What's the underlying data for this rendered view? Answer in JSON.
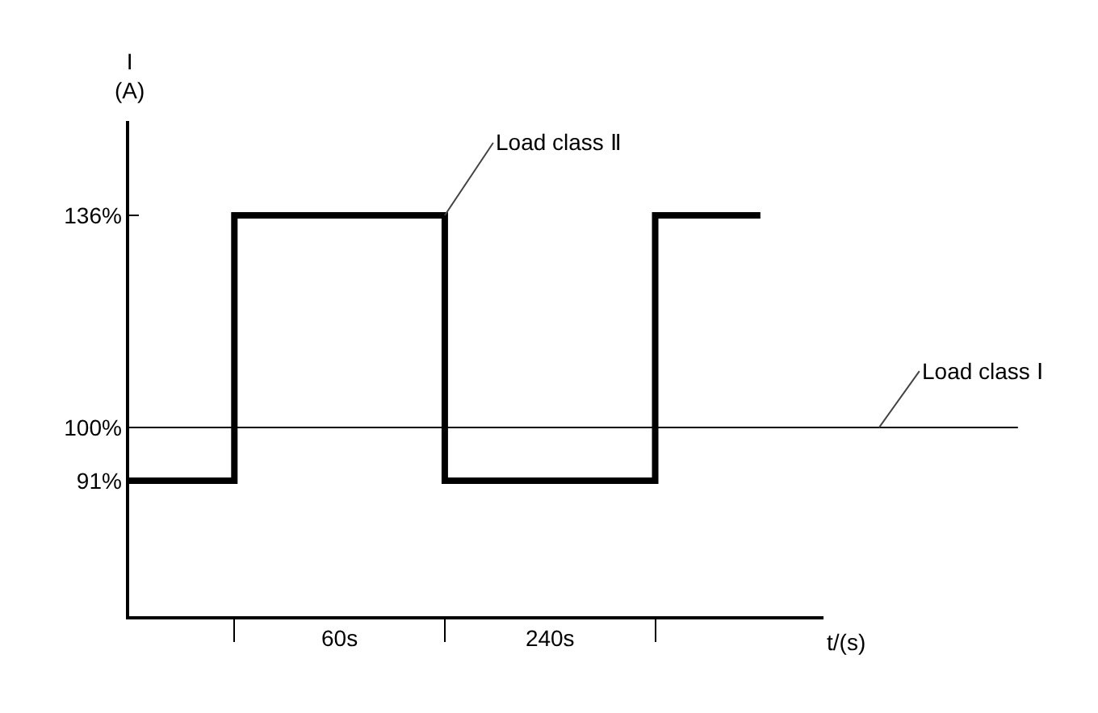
{
  "chart_data": {
    "type": "step",
    "ylabel": "I\n(A)",
    "xlabel": "t/(s)",
    "categories": [
      null,
      "60s",
      "240s",
      null
    ],
    "series": [
      {
        "name": "Load class Ⅱ",
        "color": "#000000",
        "values": [
          91,
          136,
          91,
          136
        ]
      }
    ],
    "ylim": [
      68,
      152
    ],
    "yticks": [
      {
        "value": 91,
        "label": "91%"
      },
      {
        "value": 100,
        "label": "100%"
      },
      {
        "value": 136,
        "label": "136%"
      }
    ],
    "ref_lines": [
      {
        "axis": "y",
        "value": 100,
        "label": "Load class Ⅰ",
        "color": "#000000"
      }
    ],
    "grid": false,
    "legend": false
  }
}
